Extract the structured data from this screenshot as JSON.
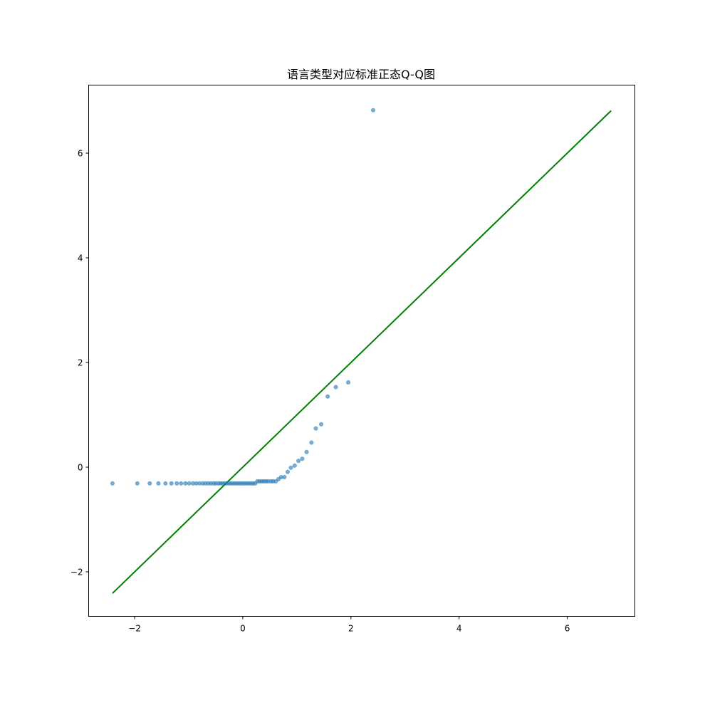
{
  "chart_data": {
    "type": "scatter",
    "title": "语言类型对应标准正态Q-Q图",
    "xlabel": "",
    "ylabel": "",
    "xlim": [
      -2.85,
      7.25
    ],
    "ylim": [
      -2.85,
      7.3
    ],
    "xticks": [
      -2,
      0,
      2,
      4,
      6
    ],
    "yticks": [
      -2,
      0,
      2,
      4,
      6
    ],
    "grid": false,
    "colors": {
      "points": "#1f77b4",
      "reference_line": "#008000",
      "axes": "#000000"
    },
    "reference_line": {
      "x": [
        -2.41,
        6.81
      ],
      "y": [
        -2.41,
        6.81
      ]
    },
    "points": {
      "x": [
        -2.41,
        -1.95,
        -1.72,
        -1.56,
        -1.43,
        -1.32,
        -1.22,
        -1.14,
        -1.06,
        -0.99,
        -0.92,
        -0.86,
        -0.8,
        -0.74,
        -0.69,
        -0.64,
        -0.59,
        -0.54,
        -0.5,
        -0.45,
        -0.41,
        -0.37,
        -0.33,
        -0.29,
        -0.25,
        -0.21,
        -0.17,
        -0.13,
        -0.09,
        -0.05,
        -0.01,
        0.03,
        0.07,
        0.11,
        0.15,
        0.19,
        0.23,
        0.27,
        0.31,
        0.35,
        0.39,
        0.43,
        0.47,
        0.52,
        0.56,
        0.61,
        0.66,
        0.71,
        0.77,
        0.83,
        0.89,
        0.96,
        1.03,
        1.1,
        1.18,
        1.27,
        1.35,
        1.45,
        1.57,
        1.72,
        1.95,
        2.41
      ],
      "y": [
        -0.31,
        -0.31,
        -0.31,
        -0.31,
        -0.31,
        -0.31,
        -0.31,
        -0.31,
        -0.31,
        -0.31,
        -0.31,
        -0.31,
        -0.31,
        -0.31,
        -0.31,
        -0.31,
        -0.31,
        -0.31,
        -0.31,
        -0.31,
        -0.31,
        -0.31,
        -0.31,
        -0.31,
        -0.31,
        -0.31,
        -0.31,
        -0.31,
        -0.31,
        -0.31,
        -0.31,
        -0.31,
        -0.31,
        -0.31,
        -0.31,
        -0.31,
        -0.31,
        -0.27,
        -0.27,
        -0.27,
        -0.27,
        -0.27,
        -0.27,
        -0.27,
        -0.27,
        -0.27,
        -0.23,
        -0.19,
        -0.19,
        -0.09,
        -0.01,
        0.03,
        0.12,
        0.16,
        0.29,
        0.47,
        0.74,
        0.82,
        1.35,
        1.53,
        1.62,
        6.82
      ]
    }
  }
}
